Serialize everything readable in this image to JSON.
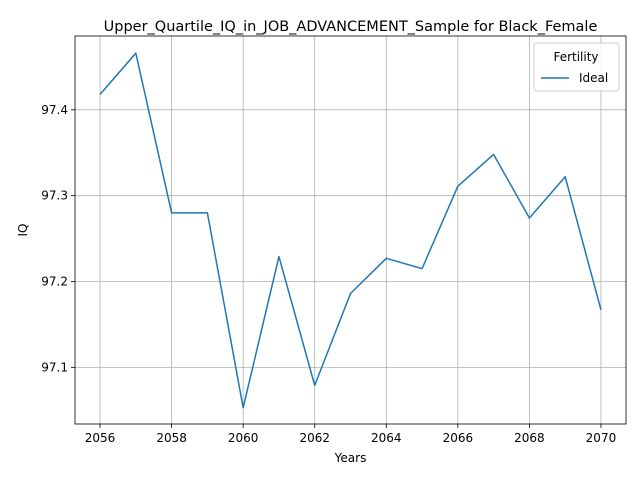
{
  "chart_data": {
    "type": "line",
    "title": "Upper_Quartile_IQ_in_JOB_ADVANCEMENT_Sample for Black_Female",
    "xlabel": "Years",
    "ylabel": "IQ",
    "xlim": [
      2055.3,
      2070.7
    ],
    "ylim": [
      97.034,
      97.486
    ],
    "xticks": [
      2056,
      2058,
      2060,
      2062,
      2064,
      2066,
      2068,
      2070
    ],
    "yticks": [
      97.1,
      97.2,
      97.3,
      97.4
    ],
    "ytick_labels": [
      "97.1",
      "97.2",
      "97.3",
      "97.4"
    ],
    "grid": true,
    "legend": {
      "title": "Fertility",
      "placement": "top-right"
    },
    "x": [
      2056,
      2057,
      2058,
      2059,
      2060,
      2061,
      2062,
      2063,
      2064,
      2065,
      2066,
      2067,
      2068,
      2069,
      2070
    ],
    "series": [
      {
        "name": "Ideal",
        "color": "#1f77b4",
        "values": [
          97.418,
          97.466,
          97.28,
          97.28,
          97.053,
          97.229,
          97.079,
          97.186,
          97.227,
          97.215,
          97.311,
          97.348,
          97.274,
          97.322,
          97.167
        ]
      }
    ]
  }
}
